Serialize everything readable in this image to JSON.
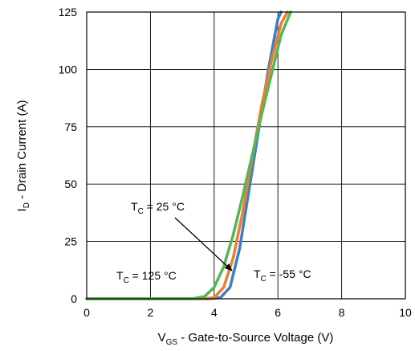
{
  "chart_data": {
    "type": "line",
    "xlabel_main": "V",
    "xlabel_sub": "GS",
    "xlabel_rest": " - Gate-to-Source Voltage (V)",
    "ylabel_main": "I",
    "ylabel_sub": "D",
    "ylabel_rest": " - Drain Current (A)",
    "xlim": [
      0,
      10
    ],
    "ylim": [
      0,
      125
    ],
    "xticks": [
      "0",
      "2",
      "4",
      "6",
      "8",
      "10"
    ],
    "yticks": [
      "0",
      "25",
      "50",
      "75",
      "100",
      "125"
    ],
    "grid": true,
    "series": [
      {
        "name": "TC = -55 °C",
        "color": "#3d7fc7",
        "x": [
          0,
          3.8,
          4.2,
          4.5,
          4.8,
          5.1,
          5.4,
          5.7,
          6.0,
          6.1
        ],
        "y": [
          0,
          0,
          0.5,
          5,
          22,
          48,
          74,
          100,
          122,
          125
        ]
      },
      {
        "name": "TC = 25 °C",
        "color": "#ed7d31",
        "x": [
          0,
          3.6,
          4.0,
          4.3,
          4.6,
          4.9,
          5.2,
          5.5,
          5.8,
          6.1,
          6.3
        ],
        "y": [
          0,
          0,
          0.5,
          5,
          18,
          38,
          62,
          85,
          104,
          120,
          125
        ]
      },
      {
        "name": "TC = 125 °C",
        "color": "#56b656",
        "x": [
          0,
          3.3,
          3.7,
          4.0,
          4.3,
          4.6,
          4.9,
          5.2,
          5.5,
          5.8,
          6.1,
          6.4
        ],
        "y": [
          0,
          0,
          1,
          5,
          14,
          28,
          45,
          63,
          81,
          98,
          115,
          125
        ]
      }
    ],
    "annotations": [
      {
        "main": "T",
        "sub": "C",
        "rest": " = 25 °C"
      },
      {
        "main": "T",
        "sub": "C",
        "rest": " = 125 °C"
      },
      {
        "main": "T",
        "sub": "C",
        "rest": " = -55 °C"
      }
    ]
  }
}
